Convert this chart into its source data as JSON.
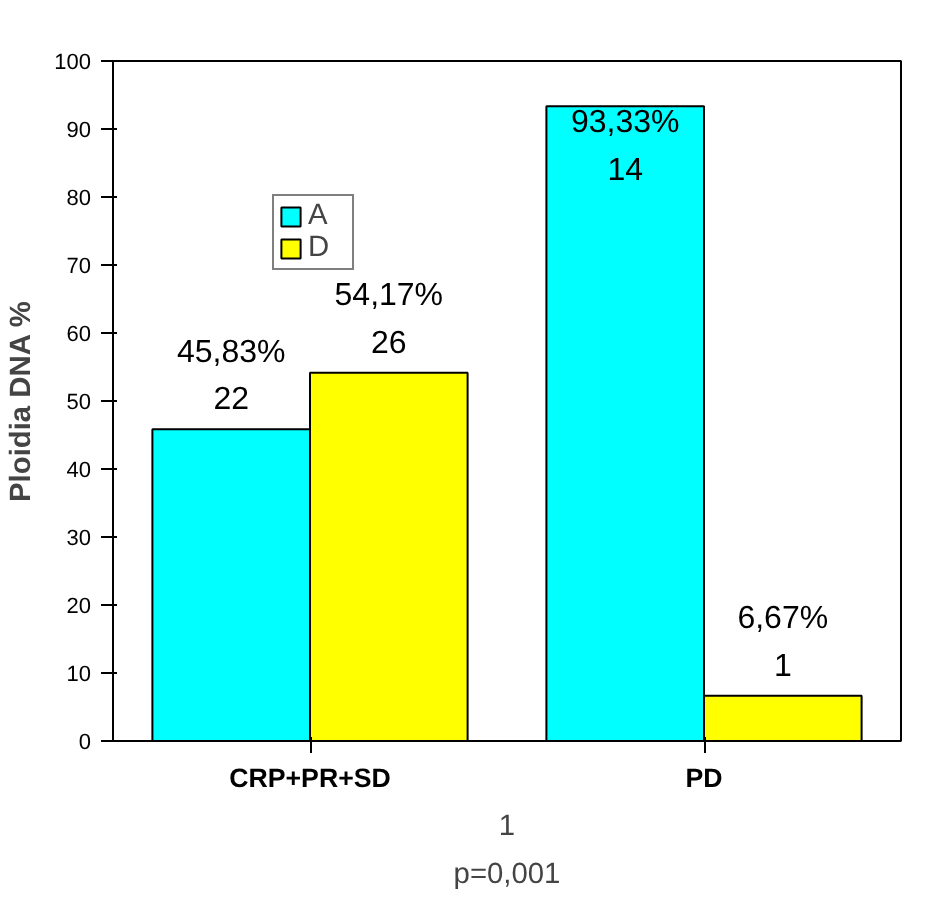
{
  "chart_data": {
    "type": "bar",
    "ylabel": "Ploidia DNA %",
    "categories": [
      "CRP+PR+SD",
      "PD"
    ],
    "series": [
      {
        "name": "A",
        "color": "#00ffff",
        "values": [
          45.83,
          93.33
        ],
        "value_labels": [
          "45,83%\n22",
          "93,33%\n14"
        ]
      },
      {
        "name": "D",
        "color": "#ffff00",
        "values": [
          54.17,
          6.67
        ],
        "value_labels": [
          "54,17%\n26",
          "6,67%\n1"
        ]
      }
    ],
    "ylim": [
      0,
      100
    ],
    "yticks": [
      0,
      10,
      20,
      30,
      40,
      50,
      60,
      70,
      80,
      90,
      100
    ],
    "grid": false,
    "legend": "top",
    "annotations": [
      "1",
      "p=0,001"
    ]
  }
}
